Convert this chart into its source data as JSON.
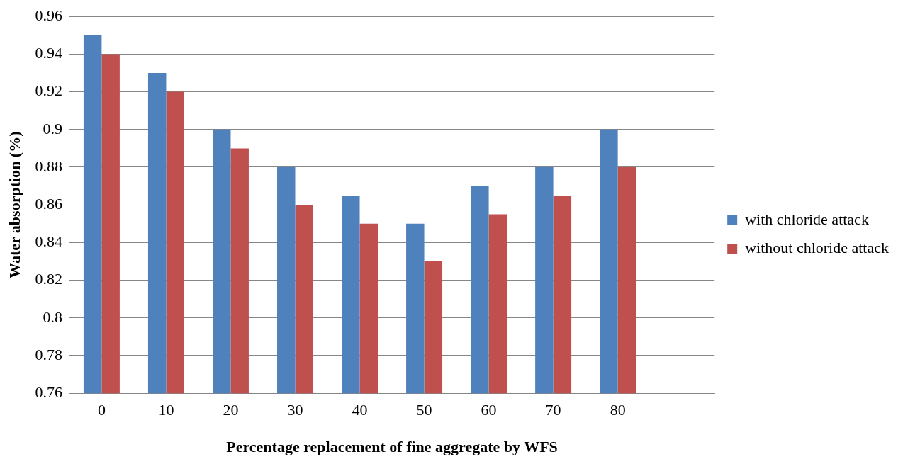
{
  "chart_data": {
    "type": "bar",
    "xlabel": "Percentage replacement of fine aggregate by WFS",
    "ylabel": "Water absorption (%)",
    "categories": [
      "0",
      "10",
      "20",
      "30",
      "40",
      "50",
      "60",
      "70",
      "80",
      null
    ],
    "series": [
      {
        "name": "with chloride attack",
        "color": "#4f81bd",
        "values": [
          0.95,
          0.93,
          0.9,
          0.88,
          0.865,
          0.85,
          0.87,
          0.88,
          0.9,
          null
        ]
      },
      {
        "name": "without chloride attack",
        "color": "#c0504d",
        "values": [
          0.94,
          0.92,
          0.89,
          0.86,
          0.85,
          0.83,
          0.855,
          0.865,
          0.88,
          null
        ]
      }
    ],
    "ylim": [
      0.76,
      0.96
    ],
    "yticks": [
      0.76,
      0.78,
      0.8,
      0.82,
      0.84,
      0.86,
      0.88,
      0.9,
      0.92,
      0.94,
      0.96
    ],
    "grid": "y",
    "legend": "right"
  }
}
